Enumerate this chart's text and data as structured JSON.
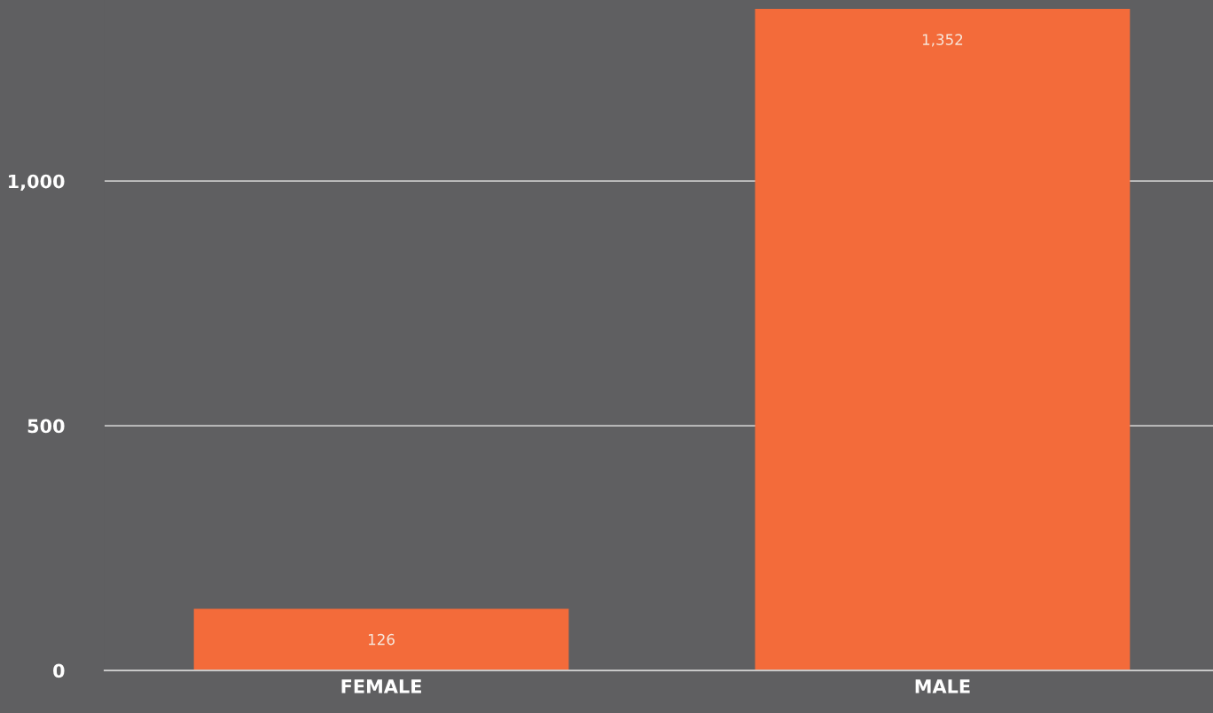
{
  "chart_data": {
    "type": "bar",
    "categories": [
      "FEMALE",
      "MALE"
    ],
    "values": [
      126,
      1352
    ],
    "color": "#f36b3a",
    "value_labels": [
      "126",
      "1,352"
    ],
    "ylim": [
      0,
      1370
    ],
    "yticks": [
      0,
      500,
      {
        "value": 1000,
        "label": "1,000"
      }
    ],
    "grid": "y"
  }
}
